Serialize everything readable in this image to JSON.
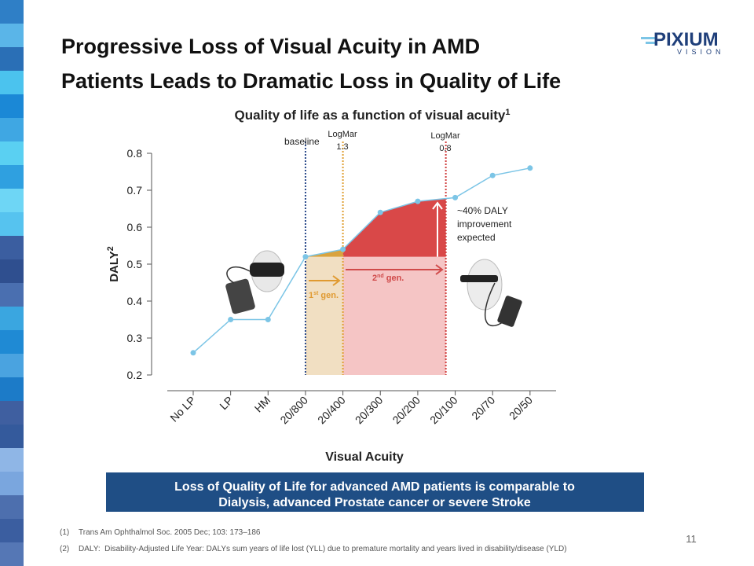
{
  "slide": {
    "title": [
      "Progressive Loss of Visual Acuity in AMD",
      "Patients Leads to Dramatic Loss in Quality of Life"
    ],
    "logo": {
      "brand": "PIXIUM",
      "tagline": "VISION"
    },
    "banner": [
      "Loss of Quality of Life for advanced AMD patients is comparable to",
      "Dialysis, advanced Prostate cancer or severe Stroke"
    ],
    "footnotes": [
      {
        "num": "(1)",
        "text": "Trans Am Ophthalmol Soc. 2005 Dec; 103: 173–186"
      },
      {
        "num": "(2)",
        "text": "DALY:  Disability-Adjusted Life Year: DALYs sum years of life lost (YLL) due to premature mortality and years lived in disability/disease (YLD)"
      }
    ],
    "page": "11"
  },
  "chart_data": {
    "type": "line",
    "title": "Quality of life as a function of visual acuity",
    "title_sup": "1",
    "y_label": "DALY",
    "y_label_sup": "2",
    "x_label": "Visual Acuity",
    "categories": [
      "No LP",
      "LP",
      "HM",
      "20/800",
      "20/400",
      "20/300",
      "20/200",
      "20/100",
      "20/70",
      "20/50"
    ],
    "series": [
      {
        "color": "#7cc5e6",
        "values": [
          0.26,
          0.35,
          0.35,
          0.52,
          0.54,
          0.64,
          0.67,
          0.68,
          0.74,
          0.76
        ]
      }
    ],
    "ylim": [
      0.2,
      0.8
    ],
    "yticks": [
      0.2,
      0.3,
      0.4,
      0.5,
      0.6,
      0.7,
      0.8
    ],
    "annotations": {
      "baseline": "baseline",
      "logmar13": [
        "LogMar",
        "1.3"
      ],
      "logmar08": [
        "LogMar",
        "0.8"
      ],
      "improvement": [
        "~40% DALY",
        "improvement",
        "expected"
      ],
      "gen1": [
        "1",
        "st",
        " gen."
      ],
      "gen2": [
        "2",
        "nd",
        " gen."
      ]
    }
  }
}
